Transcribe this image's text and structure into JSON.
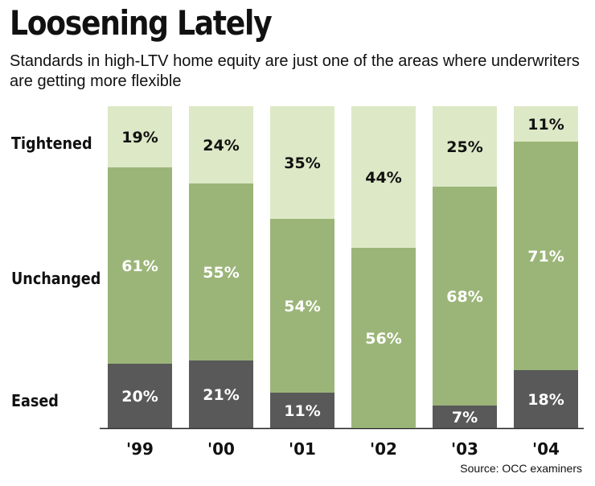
{
  "title": "Loosening Lately",
  "subtitle": "Standards in high-LTV home equity are just one of the areas where underwriters are getting more flexible",
  "source": "Source: OCC examiners",
  "colors": {
    "tightened": "#dde9c6",
    "unchanged": "#9bb578",
    "eased": "#595959",
    "dark_text": "#111111",
    "light_text": "#ffffff"
  },
  "chart_data": {
    "type": "bar",
    "stacked": true,
    "normalized": true,
    "title": "Loosening Lately",
    "xlabel": "",
    "ylabel": "",
    "ylim": [
      0,
      100
    ],
    "categories": [
      "'99",
      "'00",
      "'01",
      "'02",
      "'03",
      "'04"
    ],
    "series": [
      {
        "name": "Eased",
        "values": [
          20,
          21,
          11,
          0,
          7,
          18
        ],
        "labels": [
          "20%",
          "21%",
          "11%",
          "",
          "7%",
          "18%"
        ]
      },
      {
        "name": "Unchanged",
        "values": [
          61,
          55,
          54,
          56,
          68,
          71
        ],
        "labels": [
          "61%",
          "55%",
          "54%",
          "56%",
          "68%",
          "71%"
        ]
      },
      {
        "name": "Tightened",
        "values": [
          19,
          24,
          35,
          44,
          25,
          11
        ],
        "labels": [
          "19%",
          "24%",
          "35%",
          "44%",
          "25%",
          "11%"
        ]
      }
    ],
    "grid": false,
    "legend": "left"
  }
}
